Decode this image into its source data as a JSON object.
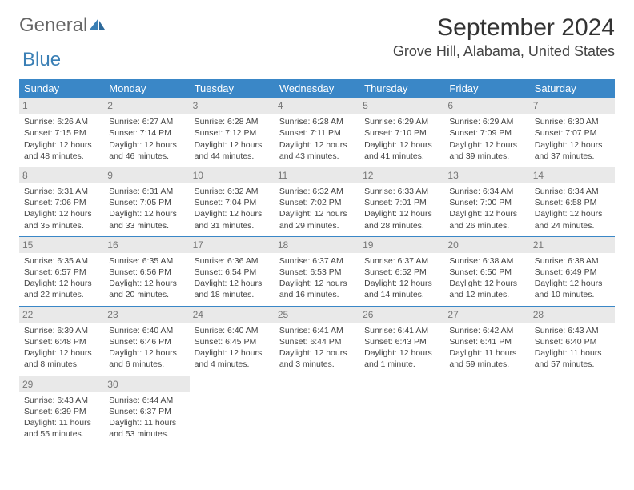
{
  "logo": {
    "text1": "General",
    "text2": "Blue"
  },
  "title": "September 2024",
  "location": "Grove Hill, Alabama, United States",
  "colors": {
    "header_bg": "#3a87c7",
    "daynum_bg": "#e9e9e9",
    "border": "#3a87c7"
  },
  "dayHeaders": [
    "Sunday",
    "Monday",
    "Tuesday",
    "Wednesday",
    "Thursday",
    "Friday",
    "Saturday"
  ],
  "days": [
    {
      "n": 1,
      "sunrise": "6:26 AM",
      "sunset": "7:15 PM",
      "daylight": "12 hours and 48 minutes."
    },
    {
      "n": 2,
      "sunrise": "6:27 AM",
      "sunset": "7:14 PM",
      "daylight": "12 hours and 46 minutes."
    },
    {
      "n": 3,
      "sunrise": "6:28 AM",
      "sunset": "7:12 PM",
      "daylight": "12 hours and 44 minutes."
    },
    {
      "n": 4,
      "sunrise": "6:28 AM",
      "sunset": "7:11 PM",
      "daylight": "12 hours and 43 minutes."
    },
    {
      "n": 5,
      "sunrise": "6:29 AM",
      "sunset": "7:10 PM",
      "daylight": "12 hours and 41 minutes."
    },
    {
      "n": 6,
      "sunrise": "6:29 AM",
      "sunset": "7:09 PM",
      "daylight": "12 hours and 39 minutes."
    },
    {
      "n": 7,
      "sunrise": "6:30 AM",
      "sunset": "7:07 PM",
      "daylight": "12 hours and 37 minutes."
    },
    {
      "n": 8,
      "sunrise": "6:31 AM",
      "sunset": "7:06 PM",
      "daylight": "12 hours and 35 minutes."
    },
    {
      "n": 9,
      "sunrise": "6:31 AM",
      "sunset": "7:05 PM",
      "daylight": "12 hours and 33 minutes."
    },
    {
      "n": 10,
      "sunrise": "6:32 AM",
      "sunset": "7:04 PM",
      "daylight": "12 hours and 31 minutes."
    },
    {
      "n": 11,
      "sunrise": "6:32 AM",
      "sunset": "7:02 PM",
      "daylight": "12 hours and 29 minutes."
    },
    {
      "n": 12,
      "sunrise": "6:33 AM",
      "sunset": "7:01 PM",
      "daylight": "12 hours and 28 minutes."
    },
    {
      "n": 13,
      "sunrise": "6:34 AM",
      "sunset": "7:00 PM",
      "daylight": "12 hours and 26 minutes."
    },
    {
      "n": 14,
      "sunrise": "6:34 AM",
      "sunset": "6:58 PM",
      "daylight": "12 hours and 24 minutes."
    },
    {
      "n": 15,
      "sunrise": "6:35 AM",
      "sunset": "6:57 PM",
      "daylight": "12 hours and 22 minutes."
    },
    {
      "n": 16,
      "sunrise": "6:35 AM",
      "sunset": "6:56 PM",
      "daylight": "12 hours and 20 minutes."
    },
    {
      "n": 17,
      "sunrise": "6:36 AM",
      "sunset": "6:54 PM",
      "daylight": "12 hours and 18 minutes."
    },
    {
      "n": 18,
      "sunrise": "6:37 AM",
      "sunset": "6:53 PM",
      "daylight": "12 hours and 16 minutes."
    },
    {
      "n": 19,
      "sunrise": "6:37 AM",
      "sunset": "6:52 PM",
      "daylight": "12 hours and 14 minutes."
    },
    {
      "n": 20,
      "sunrise": "6:38 AM",
      "sunset": "6:50 PM",
      "daylight": "12 hours and 12 minutes."
    },
    {
      "n": 21,
      "sunrise": "6:38 AM",
      "sunset": "6:49 PM",
      "daylight": "12 hours and 10 minutes."
    },
    {
      "n": 22,
      "sunrise": "6:39 AM",
      "sunset": "6:48 PM",
      "daylight": "12 hours and 8 minutes."
    },
    {
      "n": 23,
      "sunrise": "6:40 AM",
      "sunset": "6:46 PM",
      "daylight": "12 hours and 6 minutes."
    },
    {
      "n": 24,
      "sunrise": "6:40 AM",
      "sunset": "6:45 PM",
      "daylight": "12 hours and 4 minutes."
    },
    {
      "n": 25,
      "sunrise": "6:41 AM",
      "sunset": "6:44 PM",
      "daylight": "12 hours and 3 minutes."
    },
    {
      "n": 26,
      "sunrise": "6:41 AM",
      "sunset": "6:43 PM",
      "daylight": "12 hours and 1 minute."
    },
    {
      "n": 27,
      "sunrise": "6:42 AM",
      "sunset": "6:41 PM",
      "daylight": "11 hours and 59 minutes."
    },
    {
      "n": 28,
      "sunrise": "6:43 AM",
      "sunset": "6:40 PM",
      "daylight": "11 hours and 57 minutes."
    },
    {
      "n": 29,
      "sunrise": "6:43 AM",
      "sunset": "6:39 PM",
      "daylight": "11 hours and 55 minutes."
    },
    {
      "n": 30,
      "sunrise": "6:44 AM",
      "sunset": "6:37 PM",
      "daylight": "11 hours and 53 minutes."
    }
  ],
  "labels": {
    "sunrise": "Sunrise:",
    "sunset": "Sunset:",
    "daylight": "Daylight:"
  }
}
